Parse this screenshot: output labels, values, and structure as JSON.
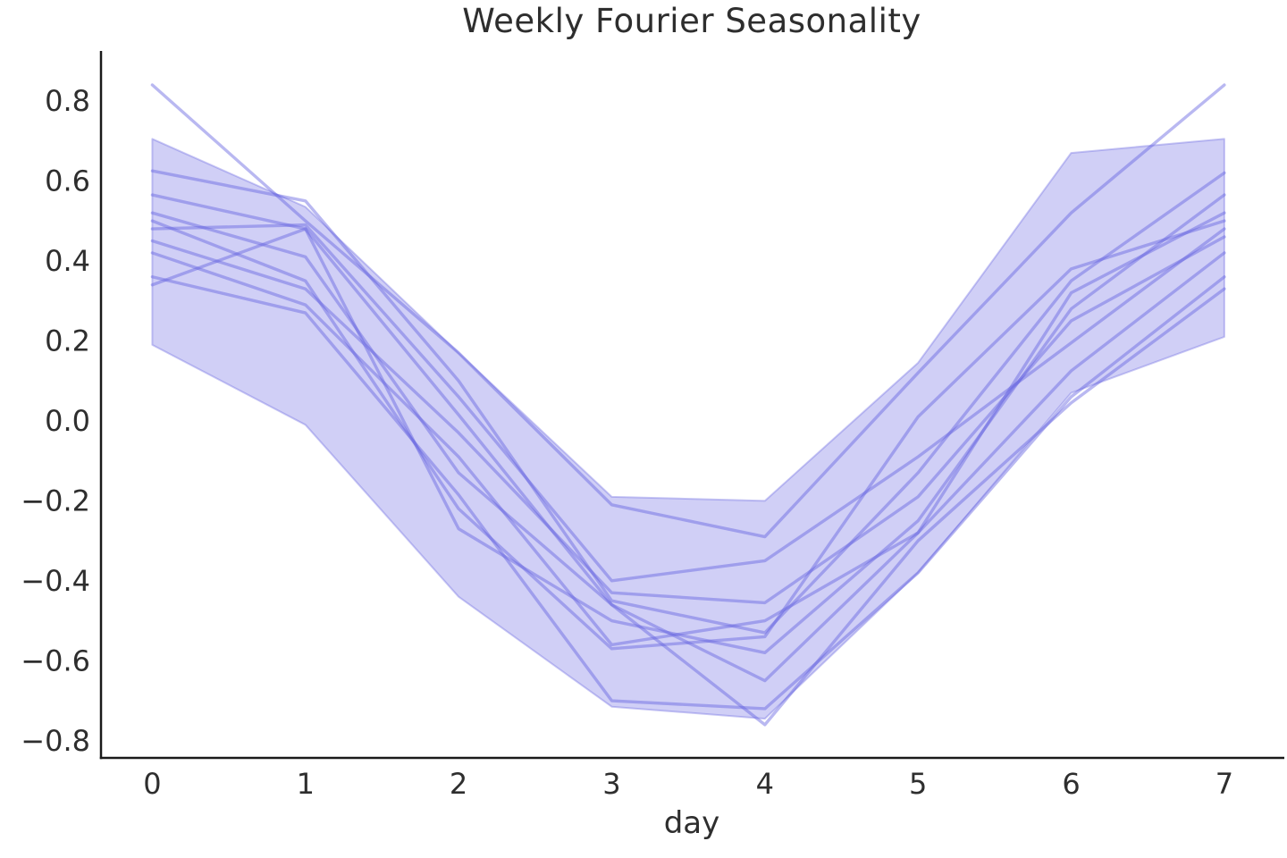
{
  "figure": {
    "title": "Weekly Fourier Seasonality",
    "xlabel": "day"
  },
  "style": {
    "accent_color": "#6361E0",
    "band_fill_alpha": 0.3,
    "band_edge_alpha": 0.35,
    "line_alpha": 0.45,
    "text_color": "#2e2e2e",
    "spine_color": "#1a1a1a"
  },
  "chart_data": {
    "type": "line",
    "title": "Weekly Fourier Seasonality",
    "xlabel": "day",
    "ylabel": "",
    "x": [
      0,
      1,
      2,
      3,
      4,
      5,
      6,
      7
    ],
    "xlim": [
      -0.335,
      7.38
    ],
    "ylim": [
      -0.843,
      0.925
    ],
    "grid": false,
    "legend": "none",
    "xtick_labels": [
      "0",
      "1",
      "2",
      "3",
      "4",
      "5",
      "6",
      "7"
    ],
    "ytick_values": [
      0.8,
      0.6,
      0.4,
      0.2,
      0.0,
      -0.2,
      -0.4,
      -0.6,
      -0.8
    ],
    "ytick_labels": [
      "0.8",
      "0.6",
      "0.4",
      "0.2",
      "0.0",
      "−0.2",
      "−0.4",
      "−0.6",
      "−0.8"
    ],
    "band": {
      "upper": [
        0.705,
        0.535,
        0.17,
        -0.19,
        -0.2,
        0.145,
        0.67,
        0.705
      ],
      "lower": [
        0.19,
        -0.01,
        -0.44,
        -0.715,
        -0.745,
        -0.38,
        0.07,
        0.21
      ]
    },
    "series": [
      [
        0.84,
        0.5,
        0.17,
        -0.21,
        -0.29,
        0.12,
        0.52,
        0.84
      ],
      [
        0.625,
        0.55,
        0.1,
        -0.45,
        -0.53,
        -0.13,
        0.35,
        0.62
      ],
      [
        0.565,
        0.48,
        -0.27,
        -0.5,
        -0.58,
        -0.25,
        0.28,
        0.565
      ],
      [
        0.52,
        0.41,
        -0.13,
        -0.46,
        -0.65,
        -0.28,
        0.32,
        0.52
      ],
      [
        0.48,
        0.49,
        0.06,
        -0.4,
        -0.35,
        -0.09,
        0.195,
        0.48
      ],
      [
        0.45,
        0.33,
        -0.03,
        -0.43,
        -0.455,
        -0.19,
        0.25,
        0.46
      ],
      [
        0.42,
        0.29,
        -0.09,
        -0.56,
        -0.5,
        -0.28,
        0.125,
        0.42
      ],
      [
        0.36,
        0.27,
        -0.185,
        -0.7,
        -0.72,
        -0.38,
        0.06,
        0.36
      ],
      [
        0.34,
        0.48,
        0.015,
        -0.46,
        -0.76,
        -0.3,
        0.045,
        0.33
      ],
      [
        0.5,
        0.35,
        -0.22,
        -0.57,
        -0.54,
        0.01,
        0.38,
        0.5
      ]
    ]
  }
}
